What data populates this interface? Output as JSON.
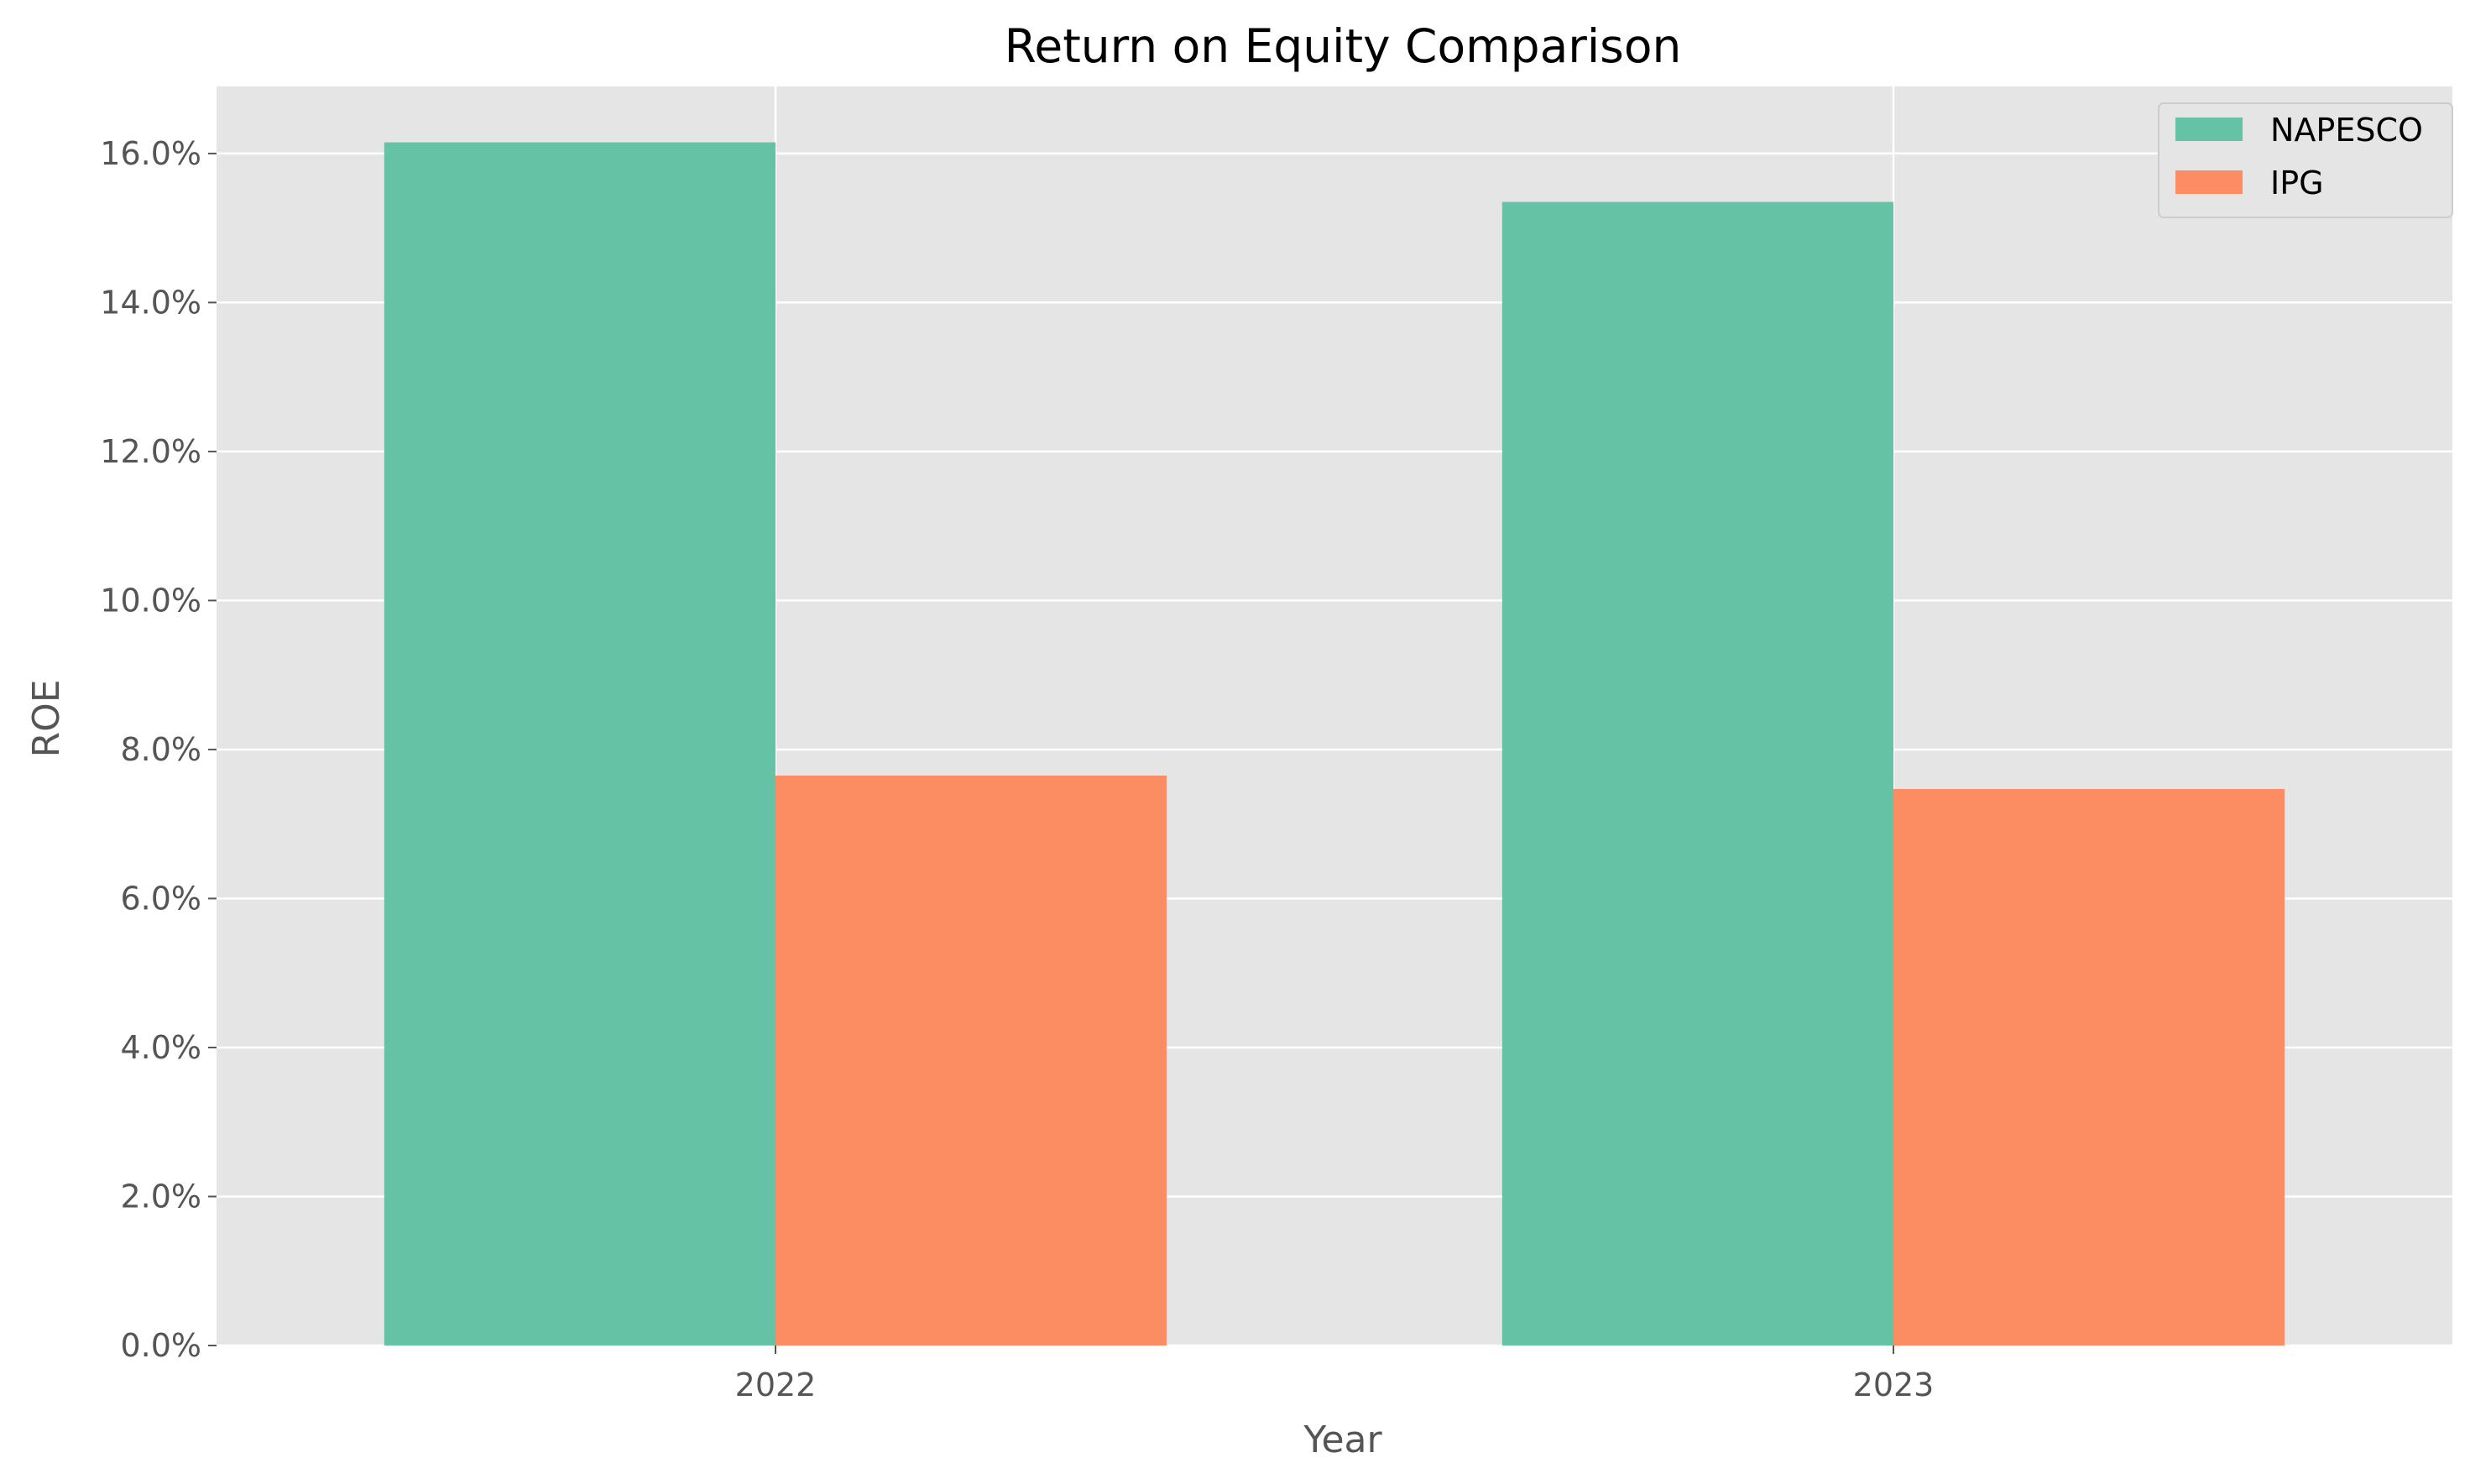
{
  "chart_data": {
    "type": "bar",
    "title": "Return on Equity Comparison",
    "xlabel": "Year",
    "ylabel": "ROE",
    "categories": [
      "2022",
      "2023"
    ],
    "series": [
      {
        "name": "NAPESCO",
        "values": [
          16.15,
          15.35
        ],
        "color": "#66c2a5"
      },
      {
        "name": "IPG",
        "values": [
          7.65,
          7.47
        ],
        "color": "#fc8d62"
      }
    ],
    "ylim": [
      0,
      16.9
    ],
    "yticks": [
      0,
      2,
      4,
      6,
      8,
      10,
      12,
      14,
      16
    ],
    "ytick_labels": [
      "0.0%",
      "2.0%",
      "4.0%",
      "6.0%",
      "8.0%",
      "10.0%",
      "12.0%",
      "14.0%",
      "16.0%"
    ],
    "grid": true,
    "legend_position": "top-right",
    "colors": {
      "plot_background": "#e5e5e5",
      "grid": "#ffffff"
    }
  }
}
